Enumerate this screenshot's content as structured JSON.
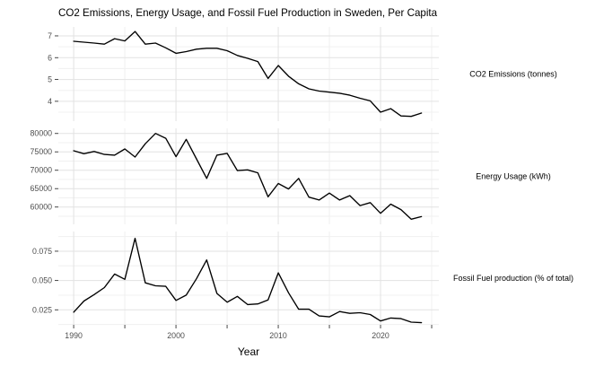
{
  "title": "CO2 Emissions, Energy Usage, and Fossil Fuel Production in Sweden, Per Capita",
  "chart_data": {
    "type": "line",
    "title": "CO2 Emissions, Energy Usage, and Fossil Fuel Production in Sweden, Per Capita",
    "xlabel": "Year",
    "grid": true,
    "legend_position": "right-facet-strips",
    "xlim": [
      1988.5,
      2025.7
    ],
    "x_grid_years": [
      1990,
      1995,
      2000,
      2005,
      2010,
      2015,
      2020,
      2025
    ],
    "x_tick_years": [
      1990,
      2000,
      2010,
      2020
    ],
    "x_tick_labels": [
      "1990",
      "2000",
      "2010",
      "2020"
    ],
    "x": [
      1990,
      1991,
      1992,
      1993,
      1994,
      1995,
      1996,
      1997,
      1998,
      1999,
      2000,
      2001,
      2002,
      2003,
      2004,
      2005,
      2006,
      2007,
      2008,
      2009,
      2010,
      2011,
      2012,
      2013,
      2014,
      2015,
      2016,
      2017,
      2018,
      2019,
      2020,
      2021,
      2022,
      2023,
      2024
    ],
    "panels": [
      {
        "name": "CO2 Emissions (tonnes)",
        "ylim": [
          3.09,
          7.41
        ],
        "yticks": [
          4,
          5,
          6,
          7
        ],
        "ytick_labels": [
          "4",
          "5",
          "6",
          "7"
        ],
        "yminor": [
          3.5,
          4.5,
          5.5,
          6.5
        ],
        "values": [
          6.75,
          6.71,
          6.67,
          6.62,
          6.87,
          6.77,
          7.2,
          6.62,
          6.67,
          6.45,
          6.2,
          6.28,
          6.39,
          6.43,
          6.43,
          6.32,
          6.1,
          5.97,
          5.82,
          5.05,
          5.64,
          5.15,
          4.8,
          4.57,
          4.47,
          4.42,
          4.37,
          4.28,
          4.14,
          4.02,
          3.5,
          3.66,
          3.33,
          3.31,
          3.46
        ]
      },
      {
        "name": "Energy Usage (kWh)",
        "ylim": [
          55300,
          81400
        ],
        "yticks": [
          60000,
          65000,
          70000,
          75000,
          80000
        ],
        "ytick_labels": [
          "60000",
          "65000",
          "70000",
          "75000",
          "80000"
        ],
        "yminor": [
          57500,
          62500,
          67500,
          72500,
          77500
        ],
        "values": [
          75300,
          74500,
          75100,
          74300,
          74100,
          75800,
          73600,
          77200,
          80000,
          78700,
          73700,
          78400,
          73100,
          67800,
          74100,
          74600,
          69900,
          70100,
          69300,
          62800,
          66400,
          64900,
          67800,
          62700,
          61900,
          63800,
          61900,
          63100,
          60400,
          61200,
          58300,
          60800,
          59300,
          56700,
          57400
        ]
      },
      {
        "name": "Fossil Fuel production (% of total)",
        "ylim": [
          0.0122,
          0.0918
        ],
        "yticks": [
          0.025,
          0.05,
          0.075
        ],
        "ytick_labels": [
          "0.025",
          "0.050",
          "0.075"
        ],
        "yminor": [
          0.0125,
          0.0375,
          0.0625,
          0.0875
        ],
        "values": [
          0.023,
          0.0325,
          0.038,
          0.044,
          0.0555,
          0.051,
          0.086,
          0.048,
          0.0455,
          0.045,
          0.033,
          0.0375,
          0.0515,
          0.0675,
          0.039,
          0.0315,
          0.0365,
          0.0295,
          0.03,
          0.0335,
          0.0565,
          0.0395,
          0.0255,
          0.0255,
          0.0198,
          0.019,
          0.0235,
          0.022,
          0.0225,
          0.021,
          0.0155,
          0.018,
          0.0175,
          0.0145,
          0.014
        ]
      }
    ],
    "colors": {
      "line": "#000000",
      "grid_major": "#e2e2e2",
      "grid_minor": "#f0f0f0",
      "axis_tick": "#333333",
      "tick_label": "#4d4d4d",
      "text": "#000000",
      "background": "#ffffff"
    }
  }
}
